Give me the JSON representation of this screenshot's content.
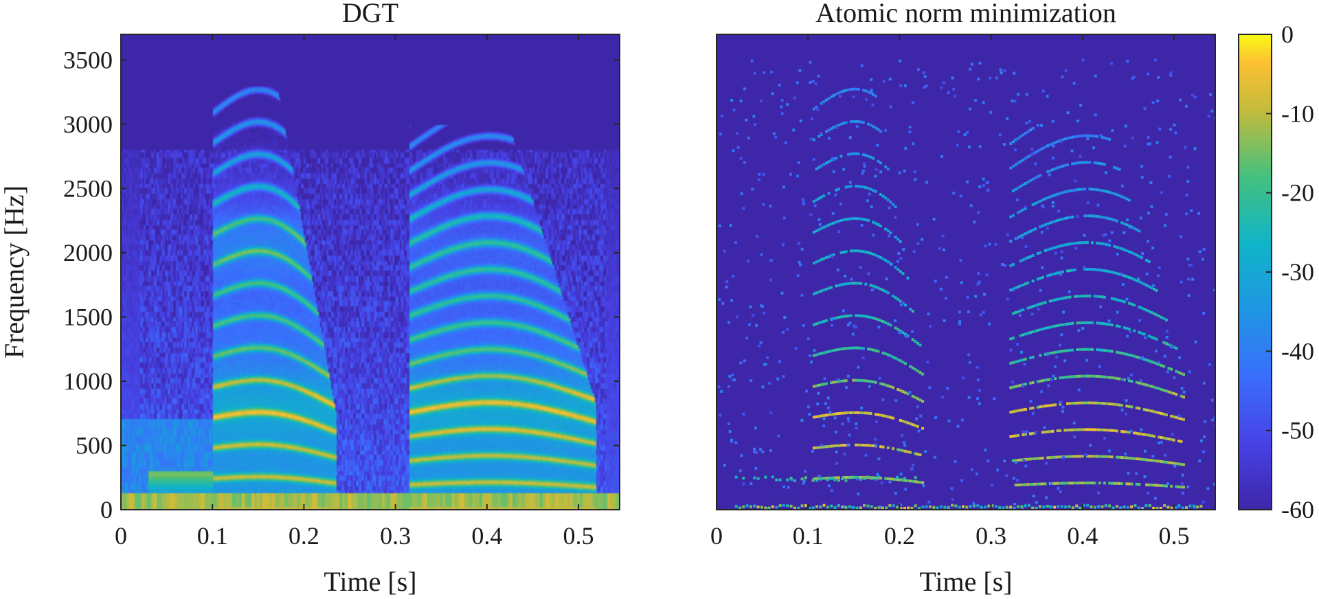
{
  "chart_data": [
    {
      "type": "heatmap",
      "title": "DGT",
      "xlabel": "Time [s]",
      "ylabel": "Frequency [Hz]",
      "xlim": [
        0,
        0.545
      ],
      "ylim": [
        0,
        3700
      ],
      "xticks": [
        0,
        0.1,
        0.2,
        0.3,
        0.4,
        0.5
      ],
      "xtick_labels": [
        "0",
        "0.1",
        "0.2",
        "0.3",
        "0.4",
        "0.5"
      ],
      "yticks": [
        0,
        500,
        1000,
        1500,
        2000,
        2500,
        3000,
        3500
      ],
      "ytick_labels": [
        "0",
        "500",
        "1000",
        "1500",
        "2000",
        "2500",
        "3000",
        "3500"
      ],
      "voiced_segments": [
        {
          "t_start": 0.105,
          "t_end": 0.225,
          "f0_start": 240,
          "f0_end": 210,
          "max_freq": 3300
        },
        {
          "t_start": 0.32,
          "t_end": 0.51,
          "f0_start": 190,
          "f0_end": 175,
          "max_freq": 3000
        }
      ],
      "low_freq_band": {
        "f_max": 120,
        "level_db": -8
      },
      "color_range_db": [
        -60,
        0
      ]
    },
    {
      "type": "heatmap",
      "title": "Atomic norm minimization",
      "xlabel": "Time [s]",
      "ylabel": "",
      "xlim": [
        0,
        0.545
      ],
      "ylim": [
        0,
        3700
      ],
      "xticks": [
        0,
        0.1,
        0.2,
        0.3,
        0.4,
        0.5
      ],
      "xtick_labels": [
        "0",
        "0.1",
        "0.2",
        "0.3",
        "0.4",
        "0.5"
      ],
      "color_range_db": [
        -60,
        0
      ]
    }
  ],
  "colorbar": {
    "ticks": [
      0,
      -10,
      -20,
      -30,
      -40,
      -50,
      -60
    ],
    "tick_labels": [
      "0",
      "-10",
      "-20",
      "-30",
      "-40",
      "-50",
      "-60"
    ],
    "range": [
      -60,
      0
    ],
    "colormap": "parula"
  },
  "colors": {
    "background_level": "#3E26A8",
    "axis": "#262626"
  }
}
